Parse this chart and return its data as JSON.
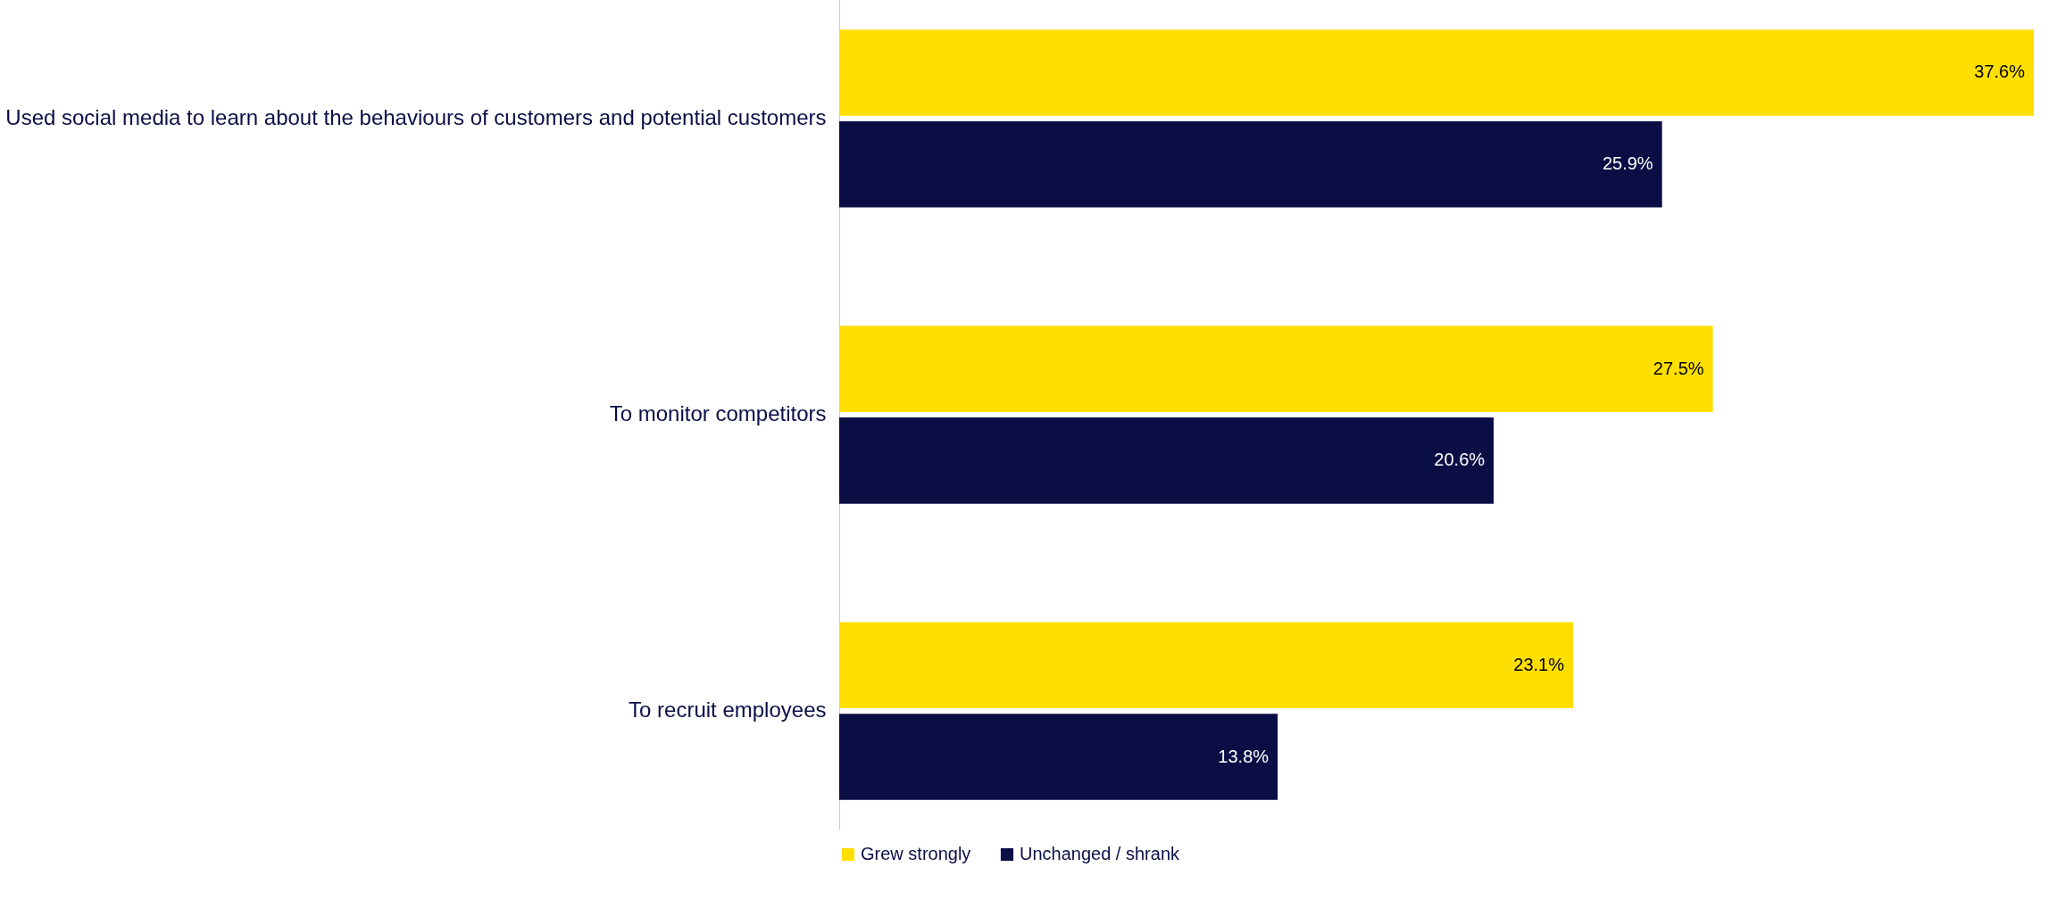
{
  "chart_data": {
    "type": "bar",
    "orientation": "horizontal",
    "categories": [
      "Used social media to learn about the behaviours of customers and potential customers",
      "To monitor competitors",
      "To recruit employees"
    ],
    "series": [
      {
        "name": "Grew strongly",
        "color": "#ffdf00",
        "values": [
          37.6,
          27.5,
          23.1
        ],
        "value_labels": [
          "37.6%",
          "27.5%",
          "23.1%"
        ]
      },
      {
        "name": "Unchanged / shrank",
        "color": "#0a0e45",
        "values": [
          25.9,
          20.6,
          13.8
        ],
        "value_labels": [
          "25.9%",
          "20.6%",
          "13.8%"
        ]
      }
    ],
    "legend": "bottom",
    "grid": false
  }
}
